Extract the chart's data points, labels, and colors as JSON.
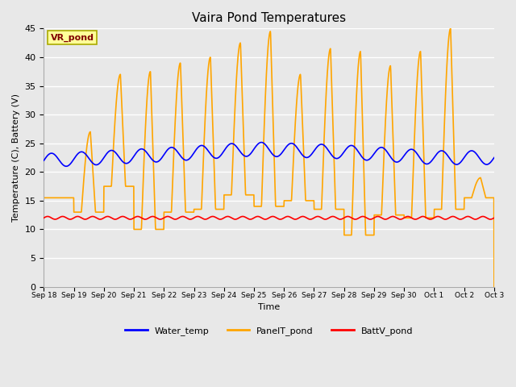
{
  "title": "Vaira Pond Temperatures",
  "xlabel": "Time",
  "ylabel": "Temperature (C), Battery (V)",
  "ylim": [
    0,
    45
  ],
  "yticks": [
    0,
    5,
    10,
    15,
    20,
    25,
    30,
    35,
    40,
    45
  ],
  "fig_bg_color": "#e8e8e8",
  "plot_bg_color": "#e8e8e8",
  "grid_color": "#ffffff",
  "legend_entries": [
    "Water_temp",
    "PanelT_pond",
    "BattV_pond"
  ],
  "annotation_text": "VR_pond",
  "annotation_box_color": "#ffff99",
  "annotation_text_color": "#800000",
  "annotation_edge_color": "#aaaa00",
  "n_days": 15,
  "x_tick_labels": [
    "Sep 18",
    "Sep 19",
    "Sep 20",
    "Sep 21",
    "Sep 22",
    "Sep 23",
    "Sep 24",
    "Sep 25",
    "Sep 26",
    "Sep 27",
    "Sep 28",
    "Sep 29",
    "Sep 30",
    "Oct 1",
    "Oct 2",
    "Oct 3"
  ],
  "panel_peak_heights": [
    15.5,
    27,
    37,
    37.5,
    39,
    40,
    42.5,
    44.5,
    37,
    41.5,
    41,
    38.5,
    41,
    45,
    19
  ],
  "panel_trough_heights": [
    15.5,
    13,
    17.5,
    10,
    13,
    13.5,
    16,
    14,
    15,
    13.5,
    9,
    12.5,
    12,
    13.5,
    15.5
  ],
  "water_temp_base": 22.0,
  "water_temp_amplitude": 1.2,
  "water_temp_drift": [
    0,
    1.0,
    2.0,
    1.5,
    0.5,
    0.5
  ],
  "water_temp_drift_x": [
    0,
    4,
    7,
    10,
    13,
    15
  ],
  "batt_base": 12.0,
  "batt_amplitude": 0.25,
  "line_width": 1.2
}
